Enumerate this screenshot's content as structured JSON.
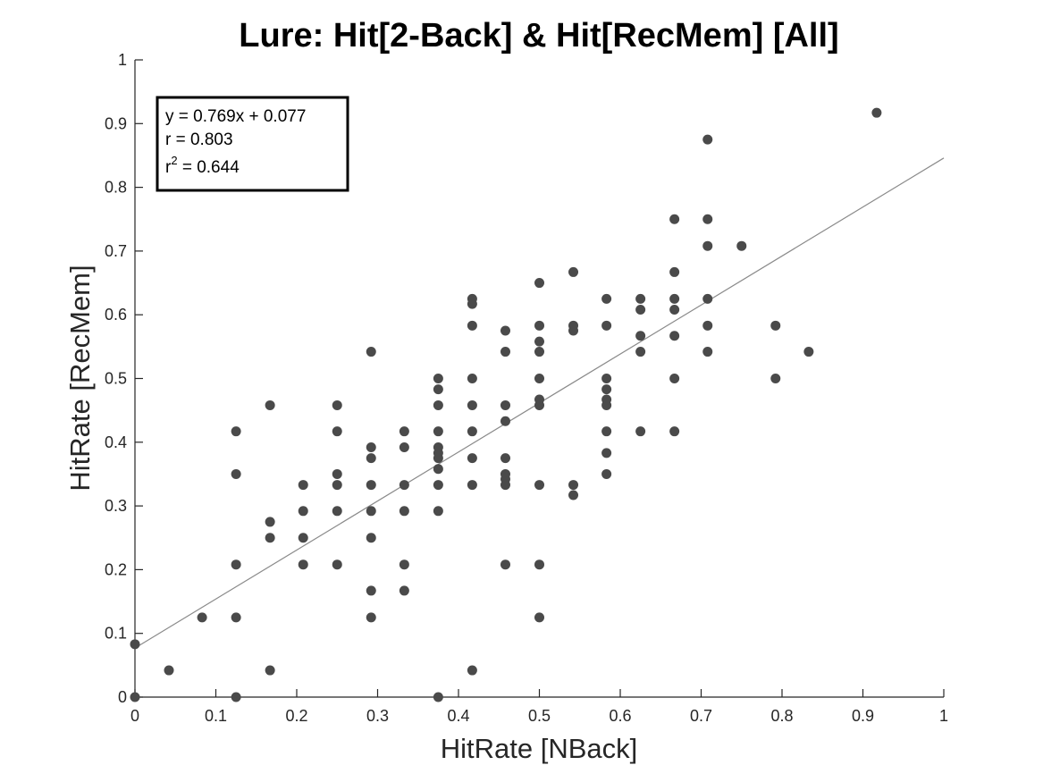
{
  "chart_data": {
    "type": "scatter",
    "title": "Lure: Hit[2-Back] & Hit[RecMem] [All]",
    "xlabel": "HitRate [NBack]",
    "ylabel": "HitRate [RecMem]",
    "xlim": [
      0,
      1
    ],
    "ylim": [
      0,
      1
    ],
    "xticks": [
      "0",
      "0.1",
      "0.2",
      "0.3",
      "0.4",
      "0.5",
      "0.6",
      "0.7",
      "0.8",
      "0.9",
      "1"
    ],
    "yticks": [
      "0",
      "0.1",
      "0.2",
      "0.3",
      "0.4",
      "0.5",
      "0.6",
      "0.7",
      "0.8",
      "0.9",
      "1"
    ],
    "grid": false,
    "fit": {
      "slope": 0.769,
      "intercept": 0.077,
      "equation": "y = 0.769x + 0.077",
      "r_text": "r = 0.803",
      "r2_prefix": "r",
      "r2_sup": "2",
      "r2_value": " = 0.644"
    },
    "series": [
      {
        "points": [
          [
            0.0,
            0.0
          ],
          [
            0.0,
            0.083
          ],
          [
            0.042,
            0.042
          ],
          [
            0.083,
            0.125
          ],
          [
            0.125,
            0.0
          ],
          [
            0.125,
            0.125
          ],
          [
            0.125,
            0.208
          ],
          [
            0.125,
            0.35
          ],
          [
            0.125,
            0.417
          ],
          [
            0.167,
            0.042
          ],
          [
            0.167,
            0.25
          ],
          [
            0.167,
            0.275
          ],
          [
            0.167,
            0.458
          ],
          [
            0.208,
            0.208
          ],
          [
            0.208,
            0.25
          ],
          [
            0.208,
            0.292
          ],
          [
            0.208,
            0.333
          ],
          [
            0.25,
            0.208
          ],
          [
            0.25,
            0.292
          ],
          [
            0.25,
            0.333
          ],
          [
            0.25,
            0.35
          ],
          [
            0.25,
            0.417
          ],
          [
            0.25,
            0.458
          ],
          [
            0.292,
            0.125
          ],
          [
            0.292,
            0.167
          ],
          [
            0.292,
            0.25
          ],
          [
            0.292,
            0.292
          ],
          [
            0.292,
            0.333
          ],
          [
            0.292,
            0.375
          ],
          [
            0.292,
            0.392
          ],
          [
            0.292,
            0.542
          ],
          [
            0.333,
            0.167
          ],
          [
            0.333,
            0.208
          ],
          [
            0.333,
            0.292
          ],
          [
            0.333,
            0.333
          ],
          [
            0.333,
            0.392
          ],
          [
            0.333,
            0.417
          ],
          [
            0.375,
            0.0
          ],
          [
            0.375,
            0.292
          ],
          [
            0.375,
            0.333
          ],
          [
            0.375,
            0.358
          ],
          [
            0.375,
            0.375
          ],
          [
            0.375,
            0.383
          ],
          [
            0.375,
            0.392
          ],
          [
            0.375,
            0.417
          ],
          [
            0.375,
            0.458
          ],
          [
            0.375,
            0.483
          ],
          [
            0.375,
            0.5
          ],
          [
            0.417,
            0.042
          ],
          [
            0.417,
            0.333
          ],
          [
            0.417,
            0.375
          ],
          [
            0.417,
            0.417
          ],
          [
            0.417,
            0.458
          ],
          [
            0.417,
            0.5
          ],
          [
            0.417,
            0.583
          ],
          [
            0.417,
            0.617
          ],
          [
            0.417,
            0.625
          ],
          [
            0.458,
            0.208
          ],
          [
            0.458,
            0.333
          ],
          [
            0.458,
            0.342
          ],
          [
            0.458,
            0.35
          ],
          [
            0.458,
            0.375
          ],
          [
            0.458,
            0.433
          ],
          [
            0.458,
            0.458
          ],
          [
            0.458,
            0.542
          ],
          [
            0.458,
            0.575
          ],
          [
            0.5,
            0.125
          ],
          [
            0.5,
            0.208
          ],
          [
            0.5,
            0.333
          ],
          [
            0.5,
            0.458
          ],
          [
            0.5,
            0.467
          ],
          [
            0.5,
            0.5
          ],
          [
            0.5,
            0.542
          ],
          [
            0.5,
            0.558
          ],
          [
            0.5,
            0.583
          ],
          [
            0.5,
            0.65
          ],
          [
            0.542,
            0.317
          ],
          [
            0.542,
            0.333
          ],
          [
            0.542,
            0.575
          ],
          [
            0.542,
            0.583
          ],
          [
            0.542,
            0.667
          ],
          [
            0.583,
            0.35
          ],
          [
            0.583,
            0.383
          ],
          [
            0.583,
            0.417
          ],
          [
            0.583,
            0.458
          ],
          [
            0.583,
            0.467
          ],
          [
            0.583,
            0.483
          ],
          [
            0.583,
            0.5
          ],
          [
            0.583,
            0.583
          ],
          [
            0.583,
            0.625
          ],
          [
            0.625,
            0.417
          ],
          [
            0.625,
            0.542
          ],
          [
            0.625,
            0.567
          ],
          [
            0.625,
            0.608
          ],
          [
            0.625,
            0.625
          ],
          [
            0.667,
            0.417
          ],
          [
            0.667,
            0.5
          ],
          [
            0.667,
            0.567
          ],
          [
            0.667,
            0.608
          ],
          [
            0.667,
            0.625
          ],
          [
            0.667,
            0.667
          ],
          [
            0.667,
            0.75
          ],
          [
            0.708,
            0.542
          ],
          [
            0.708,
            0.583
          ],
          [
            0.708,
            0.625
          ],
          [
            0.708,
            0.708
          ],
          [
            0.708,
            0.75
          ],
          [
            0.708,
            0.875
          ],
          [
            0.75,
            0.708
          ],
          [
            0.792,
            0.5
          ],
          [
            0.792,
            0.583
          ],
          [
            0.833,
            0.542
          ],
          [
            0.917,
            0.917
          ]
        ]
      }
    ]
  }
}
